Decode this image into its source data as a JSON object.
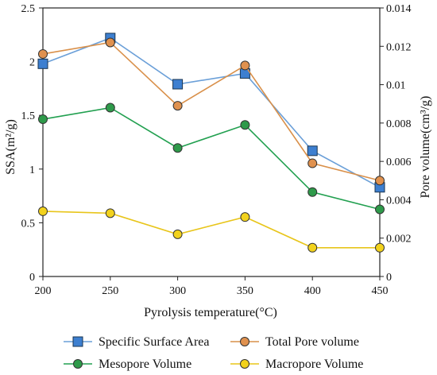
{
  "chart_data": {
    "type": "line",
    "x": [
      200,
      250,
      300,
      350,
      400,
      450
    ],
    "xlabel": "Pyrolysis temperature(°C)",
    "xlim": [
      200,
      450
    ],
    "xticks": [
      "200",
      "250",
      "300",
      "350",
      "400",
      "450"
    ],
    "ylabel_left": "SSA(m²/g)",
    "ylim_left": [
      0,
      2.5
    ],
    "yticks_left": [
      "0",
      "0.5",
      "1",
      "1.5",
      "2",
      "2.5"
    ],
    "ylabel_right": "Pore volume(cm³/g)",
    "ylim_right": [
      0,
      0.014
    ],
    "yticks_right": [
      "0",
      "0.002",
      "0.004",
      "0.006",
      "0.008",
      "0.01",
      "0.012",
      "0.014"
    ],
    "legend_position": "bottom",
    "series": [
      {
        "name": "Specific Surface Area",
        "axis": "left",
        "marker": "square",
        "line_color": "#6a9fd8",
        "marker_fill": "#3d7fd0",
        "values": [
          1.98,
          2.22,
          1.79,
          1.89,
          1.17,
          0.83
        ]
      },
      {
        "name": "Total Pore volume",
        "axis": "right",
        "marker": "circle",
        "line_color": "#d9904a",
        "marker_fill": "#e0914e",
        "values": [
          0.0116,
          0.0122,
          0.0089,
          0.011,
          0.0059,
          0.005
        ]
      },
      {
        "name": "Mesopore Volume",
        "axis": "right",
        "marker": "circle",
        "line_color": "#22a050",
        "marker_fill": "#2e9a4a",
        "values": [
          0.0082,
          0.0088,
          0.0067,
          0.0079,
          0.0044,
          0.0035
        ]
      },
      {
        "name": "Macropore Volume",
        "axis": "right",
        "marker": "circle",
        "line_color": "#e8c51a",
        "marker_fill": "#f2d21c",
        "values": [
          0.0034,
          0.0033,
          0.0022,
          0.0031,
          0.0015,
          0.0015
        ]
      }
    ]
  }
}
